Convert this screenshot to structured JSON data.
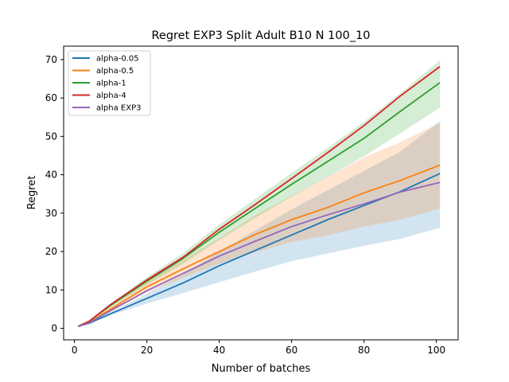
{
  "chart_data": {
    "type": "line",
    "title": "Regret EXP3 Split Adult B10 N 100_10",
    "xlabel": "Number of batches",
    "ylabel": "Regret",
    "xlim": [
      -3.0,
      106.0
    ],
    "ylim": [
      -3.0,
      73.5
    ],
    "xticks": [
      0,
      20,
      40,
      60,
      80,
      100
    ],
    "yticks": [
      0,
      10,
      20,
      30,
      40,
      50,
      60,
      70
    ],
    "grid": false,
    "legend_position": "top-left",
    "x": [
      1,
      4,
      10,
      20,
      30,
      40,
      50,
      60,
      70,
      80,
      90,
      101
    ],
    "series": [
      {
        "name": "alpha-0.05",
        "color": "#1f77b4",
        "values": [
          0.5,
          1.3,
          3.8,
          7.8,
          11.8,
          16.3,
          20.3,
          24.3,
          28.3,
          32.0,
          35.6,
          40.3
        ],
        "lower": [
          0.5,
          1.2,
          3.4,
          6.5,
          9.2,
          12.0,
          14.8,
          17.5,
          19.5,
          21.5,
          23.3,
          26.2
        ],
        "upper": [
          0.5,
          1.5,
          4.2,
          9.0,
          14.0,
          20.0,
          25.5,
          31.0,
          36.0,
          41.0,
          46.0,
          54.0
        ]
      },
      {
        "name": "alpha-0.5",
        "color": "#ff7f0e",
        "values": [
          0.5,
          1.5,
          5.0,
          10.8,
          15.5,
          20.0,
          24.5,
          28.3,
          31.5,
          35.3,
          38.5,
          42.5
        ],
        "lower": [
          0.5,
          1.3,
          4.4,
          9.3,
          13.2,
          16.8,
          19.8,
          22.5,
          24.2,
          26.5,
          28.3,
          31.2
        ],
        "upper": [
          0.5,
          1.7,
          5.6,
          12.2,
          17.8,
          23.5,
          29.5,
          34.5,
          39.5,
          44.5,
          48.5,
          53.5
        ]
      },
      {
        "name": "alpha-1",
        "color": "#2ca02c",
        "values": [
          0.5,
          1.8,
          6.0,
          12.3,
          18.2,
          25.0,
          31.3,
          37.5,
          43.5,
          49.5,
          56.5,
          64.0
        ],
        "lower": [
          0.5,
          1.6,
          5.5,
          11.3,
          16.8,
          23.0,
          28.8,
          34.3,
          39.5,
          44.8,
          50.8,
          57.5
        ],
        "upper": [
          0.5,
          2.0,
          6.5,
          13.3,
          19.6,
          27.0,
          33.8,
          40.5,
          47.0,
          53.8,
          61.2,
          69.8
        ]
      },
      {
        "name": "alpha-4",
        "color": "#d62728",
        "values": [
          0.5,
          1.8,
          6.2,
          12.6,
          18.5,
          25.8,
          32.3,
          39.0,
          45.8,
          52.8,
          60.5,
          68.2
        ]
      },
      {
        "name": "alpha EXP3",
        "color": "#9467bd",
        "values": [
          0.5,
          1.4,
          4.6,
          9.8,
          14.3,
          18.8,
          22.7,
          26.5,
          29.6,
          32.4,
          35.5,
          38.0
        ]
      }
    ]
  }
}
